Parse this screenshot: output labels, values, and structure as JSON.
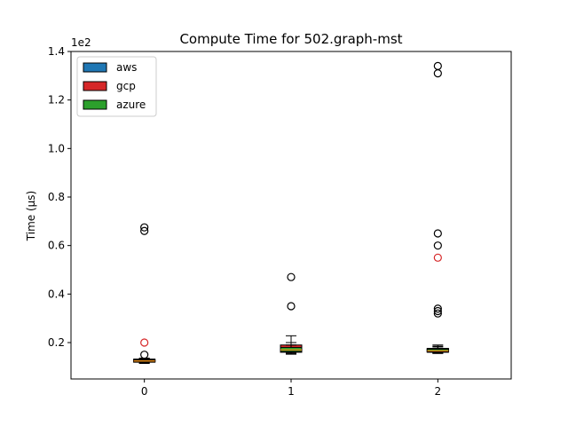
{
  "chart_data": {
    "type": "box",
    "title": "Compute Time for 502.graph-mst",
    "ylabel": "Time (µs)",
    "xlabel": "",
    "y_offset_text": "1e2",
    "ylim": [
      0.05,
      1.4
    ],
    "xlim": [
      -0.5,
      2.5
    ],
    "x_ticks": [
      0,
      1,
      2
    ],
    "x_tick_labels": [
      "0",
      "1",
      "2"
    ],
    "y_ticks": [
      0.2,
      0.4,
      0.6,
      0.8,
      1.0,
      1.2,
      1.4
    ],
    "y_tick_labels": [
      "0.2",
      "0.4",
      "0.6",
      "0.8",
      "1.0",
      "1.2",
      "1.4"
    ],
    "legend_position": "top-left",
    "series": [
      {
        "name": "aws",
        "color": "#1f77b4",
        "boxes": [
          {
            "x": 0,
            "whisker_low": 0.114,
            "q1": 0.119,
            "median": 0.123,
            "q3": 0.128,
            "whisker_high": 0.133,
            "outliers": [
              0.66,
              0.675,
              0.15
            ]
          },
          {
            "x": 1,
            "whisker_low": 0.155,
            "q1": 0.162,
            "median": 0.172,
            "q3": 0.184,
            "whisker_high": 0.2,
            "outliers": [
              0.47,
              0.35
            ]
          },
          {
            "x": 2,
            "whisker_low": 0.155,
            "q1": 0.16,
            "median": 0.168,
            "q3": 0.175,
            "whisker_high": 0.185,
            "outliers": [
              1.34,
              1.31,
              0.65,
              0.6,
              0.34,
              0.33,
              0.32
            ]
          }
        ]
      },
      {
        "name": "gcp",
        "color": "#d62728",
        "boxes": [
          {
            "x": 0,
            "whisker_low": 0.118,
            "q1": 0.122,
            "median": 0.127,
            "q3": 0.132,
            "whisker_high": 0.136,
            "outliers": [
              0.2
            ]
          },
          {
            "x": 1,
            "whisker_low": 0.152,
            "q1": 0.16,
            "median": 0.175,
            "q3": 0.19,
            "whisker_high": 0.228,
            "outliers": []
          },
          {
            "x": 2,
            "whisker_low": 0.156,
            "q1": 0.162,
            "median": 0.168,
            "q3": 0.176,
            "whisker_high": 0.19,
            "outliers": [
              0.55
            ]
          }
        ]
      },
      {
        "name": "azure",
        "color": "#2ca02c",
        "boxes": [
          {
            "x": 0,
            "whisker_low": 0.116,
            "q1": 0.12,
            "median": 0.124,
            "q3": 0.129,
            "whisker_high": 0.134,
            "outliers": []
          },
          {
            "x": 1,
            "whisker_low": 0.156,
            "q1": 0.163,
            "median": 0.17,
            "q3": 0.18,
            "whisker_high": 0.19,
            "outliers": []
          },
          {
            "x": 2,
            "whisker_low": 0.157,
            "q1": 0.162,
            "median": 0.166,
            "q3": 0.173,
            "whisker_high": 0.182,
            "outliers": []
          }
        ]
      }
    ]
  }
}
